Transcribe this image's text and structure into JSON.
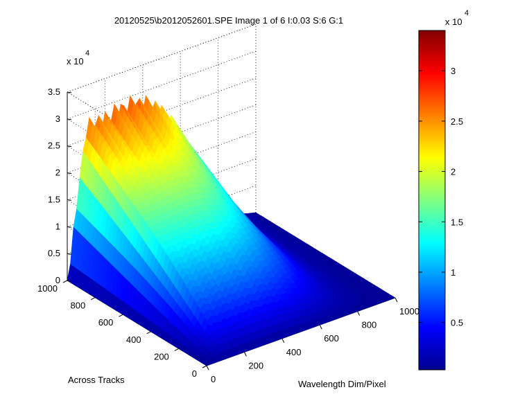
{
  "figure": {
    "title": "20120525\\b2012052601.SPE  Image 1 of 6  I:0.03  S:6  G:1"
  },
  "chart_data": {
    "type": "surface",
    "title": "20120525\\b2012052601.SPE  Image 1 of 6  I:0.03  S:6  G:1",
    "xlabel": "Wavelength Dim/Pixel",
    "ylabel": "Across Tracks",
    "zlabel": "",
    "x_ticks": [
      "0",
      "200",
      "400",
      "600",
      "800",
      "1000"
    ],
    "y_ticks": [
      "0",
      "200",
      "400",
      "600",
      "800",
      "1000"
    ],
    "z_ticks": [
      "0",
      "0.5",
      "1",
      "1.5",
      "2",
      "2.5",
      "3",
      "3.5"
    ],
    "z_multiplier": "x 10",
    "z_exponent": "4",
    "xlim": [
      0,
      1000
    ],
    "ylim": [
      0,
      1000
    ],
    "zlim": [
      0,
      35000
    ],
    "grid": true,
    "colormap": "jet",
    "surface_profile": {
      "description_values": {
        "x_wavelength": [
          0,
          100,
          200,
          300,
          400,
          500,
          600,
          700,
          800,
          900,
          1000
        ],
        "peak_z_at_y_1000": [
          0,
          29000,
          29500,
          30500,
          30000,
          27000,
          21000,
          13000,
          5000,
          1000,
          0
        ]
      }
    },
    "colorbar": {
      "ticks": [
        "0.5",
        "1",
        "1.5",
        "2",
        "2.5",
        "3"
      ],
      "tick_values": [
        5000,
        10000,
        15000,
        20000,
        25000,
        30000
      ],
      "range": [
        300,
        34000
      ],
      "multiplier": "x 10",
      "exponent": "4",
      "colors": [
        "#00008f",
        "#0000ff",
        "#00ffff",
        "#ffff00",
        "#ff0000",
        "#800000"
      ]
    }
  }
}
